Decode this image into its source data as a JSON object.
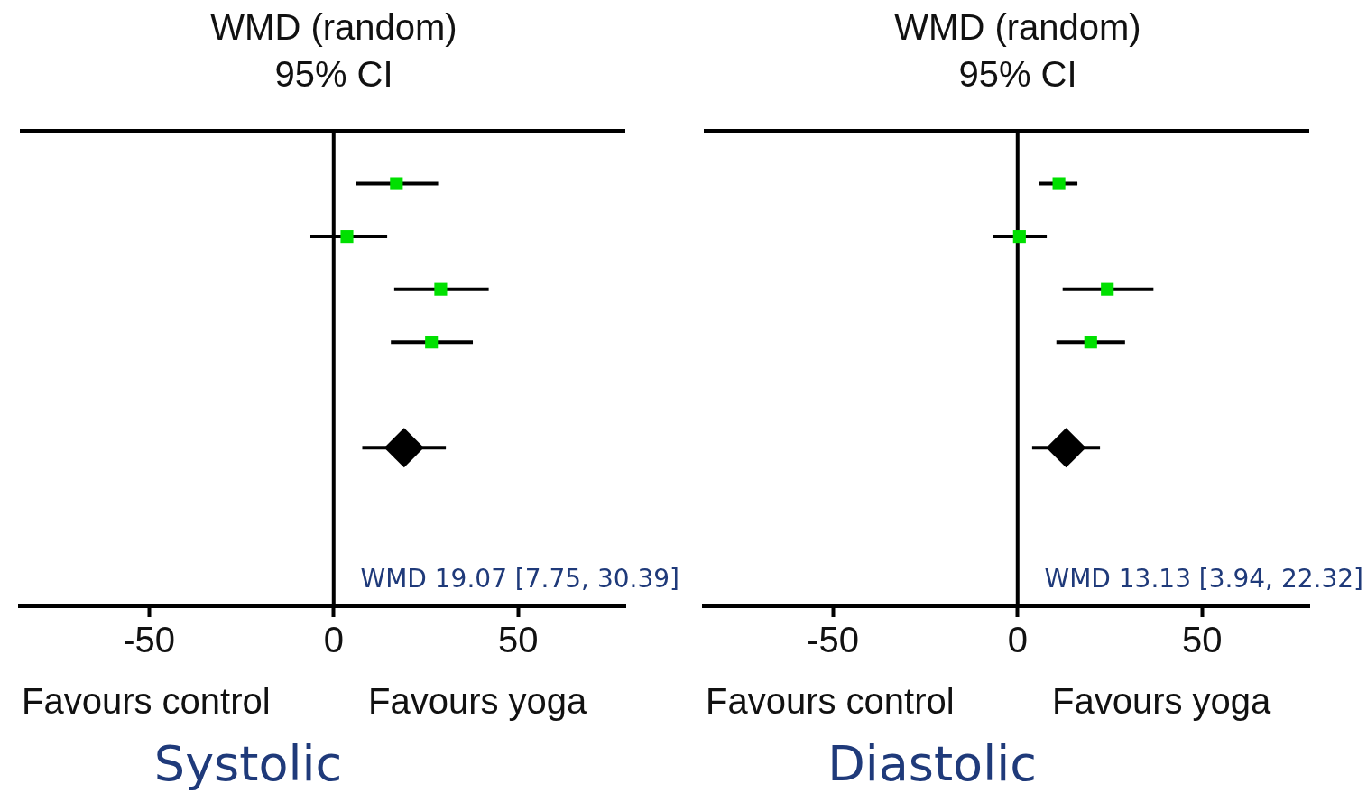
{
  "chart_data": [
    {
      "type": "scatter",
      "title": "WMD (random)",
      "subtitle": "95% CI",
      "xlabel": "Systolic",
      "annotations": [
        "Favours control",
        "Favours yoga",
        "WMD 19.07 [7.75, 30.39]"
      ],
      "categories": [
        null,
        null,
        null,
        null,
        null,
        null,
        null,
        null,
        null,
        null
      ],
      "orientation": "horizontal",
      "xlim": [
        -85,
        79
      ],
      "xticks": [
        -50,
        0,
        50
      ],
      "ref_lines": [
        {
          "axis": "x",
          "value": 0,
          "color": "#000000"
        }
      ],
      "grid": false,
      "series": [
        {
          "color": "#00e000",
          "marker": "square",
          "values": [
            null,
            17,
            3.6,
            29,
            26.5,
            null,
            null,
            null,
            null,
            null
          ],
          "errors": [
            null,
            [
              6,
              28.3
            ],
            [
              -6.3,
              14.5
            ],
            [
              16.4,
              42
            ],
            [
              15.5,
              37.7
            ],
            null,
            null,
            null,
            null,
            null
          ]
        },
        {
          "color": "#000000",
          "marker": "diamond",
          "values": [
            null,
            null,
            null,
            null,
            null,
            null,
            19.07,
            null,
            null,
            null
          ],
          "errors": [
            null,
            null,
            null,
            null,
            null,
            null,
            [
              7.75,
              30.39
            ],
            null,
            null,
            null
          ]
        }
      ]
    },
    {
      "type": "scatter",
      "title": "WMD (random)",
      "subtitle": "95% CI",
      "xlabel": "Diastolic",
      "annotations": [
        "Favours control",
        "Favours yoga",
        "WMD 13.13 [3.94, 22.32]"
      ],
      "categories": [
        null,
        null,
        null,
        null,
        null,
        null,
        null,
        null,
        null,
        null
      ],
      "orientation": "horizontal",
      "xlim": [
        -85,
        79
      ],
      "xticks": [
        -50,
        0,
        50
      ],
      "ref_lines": [
        {
          "axis": "x",
          "value": 0,
          "color": "#000000"
        }
      ],
      "grid": false,
      "series": [
        {
          "color": "#00e000",
          "marker": "square",
          "values": [
            null,
            11.2,
            0.5,
            24.3,
            19.8,
            null,
            null,
            null,
            null,
            null
          ],
          "errors": [
            null,
            [
              5.7,
              16.2
            ],
            [
              -6.7,
              7.9
            ],
            [
              12.2,
              36.8
            ],
            [
              10.5,
              29.1
            ],
            null,
            null,
            null,
            null,
            null
          ]
        },
        {
          "color": "#000000",
          "marker": "diamond",
          "values": [
            null,
            null,
            null,
            null,
            null,
            null,
            13.13,
            null,
            null,
            null
          ],
          "errors": [
            null,
            null,
            null,
            null,
            null,
            null,
            [
              3.94,
              22.32
            ],
            null,
            null,
            null
          ]
        }
      ]
    }
  ]
}
